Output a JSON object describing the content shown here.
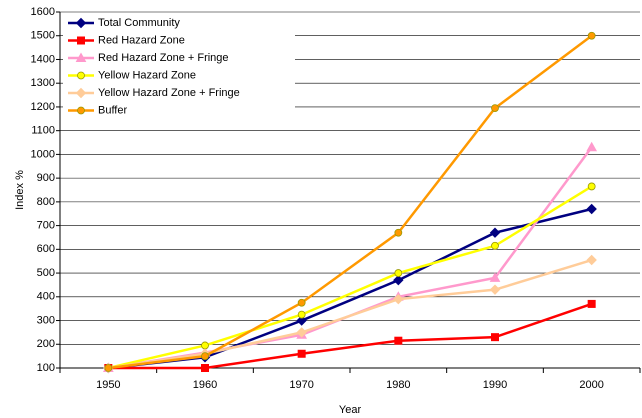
{
  "chart_data": {
    "type": "line",
    "x_label": "Year",
    "y_label": "Index %",
    "categories": [
      "1950",
      "1960",
      "1970",
      "1980",
      "1990",
      "2000"
    ],
    "ylim": [
      100,
      1600
    ],
    "yticks": [
      100,
      200,
      300,
      400,
      500,
      600,
      700,
      800,
      900,
      1000,
      1100,
      1200,
      1300,
      1400,
      1500,
      1600
    ],
    "grid": true,
    "legend": "top-left",
    "series": [
      {
        "name": "Total Community",
        "color": "#000080",
        "marker": "diamond",
        "values": [
          100,
          145,
          300,
          470,
          670,
          770
        ]
      },
      {
        "name": "Red Hazard Zone",
        "color": "#ff0000",
        "marker": "square",
        "values": [
          100,
          100,
          160,
          215,
          230,
          370
        ]
      },
      {
        "name": "Red Hazard Zone + Fringe",
        "color": "#ff99cc",
        "marker": "triangle",
        "values": [
          100,
          165,
          240,
          400,
          480,
          1030
        ]
      },
      {
        "name": "Yellow Hazard Zone",
        "color": "#ffff00",
        "marker": "circle",
        "values": [
          100,
          195,
          325,
          500,
          615,
          865
        ]
      },
      {
        "name": "Yellow Hazard Zone + Fringe",
        "color": "#ffcc99",
        "marker": "diamond",
        "values": [
          100,
          160,
          250,
          390,
          430,
          555
        ]
      },
      {
        "name": "Buffer",
        "color": "#ff9900",
        "marker": "circle",
        "values": [
          100,
          150,
          375,
          670,
          1195,
          1500
        ]
      }
    ]
  }
}
